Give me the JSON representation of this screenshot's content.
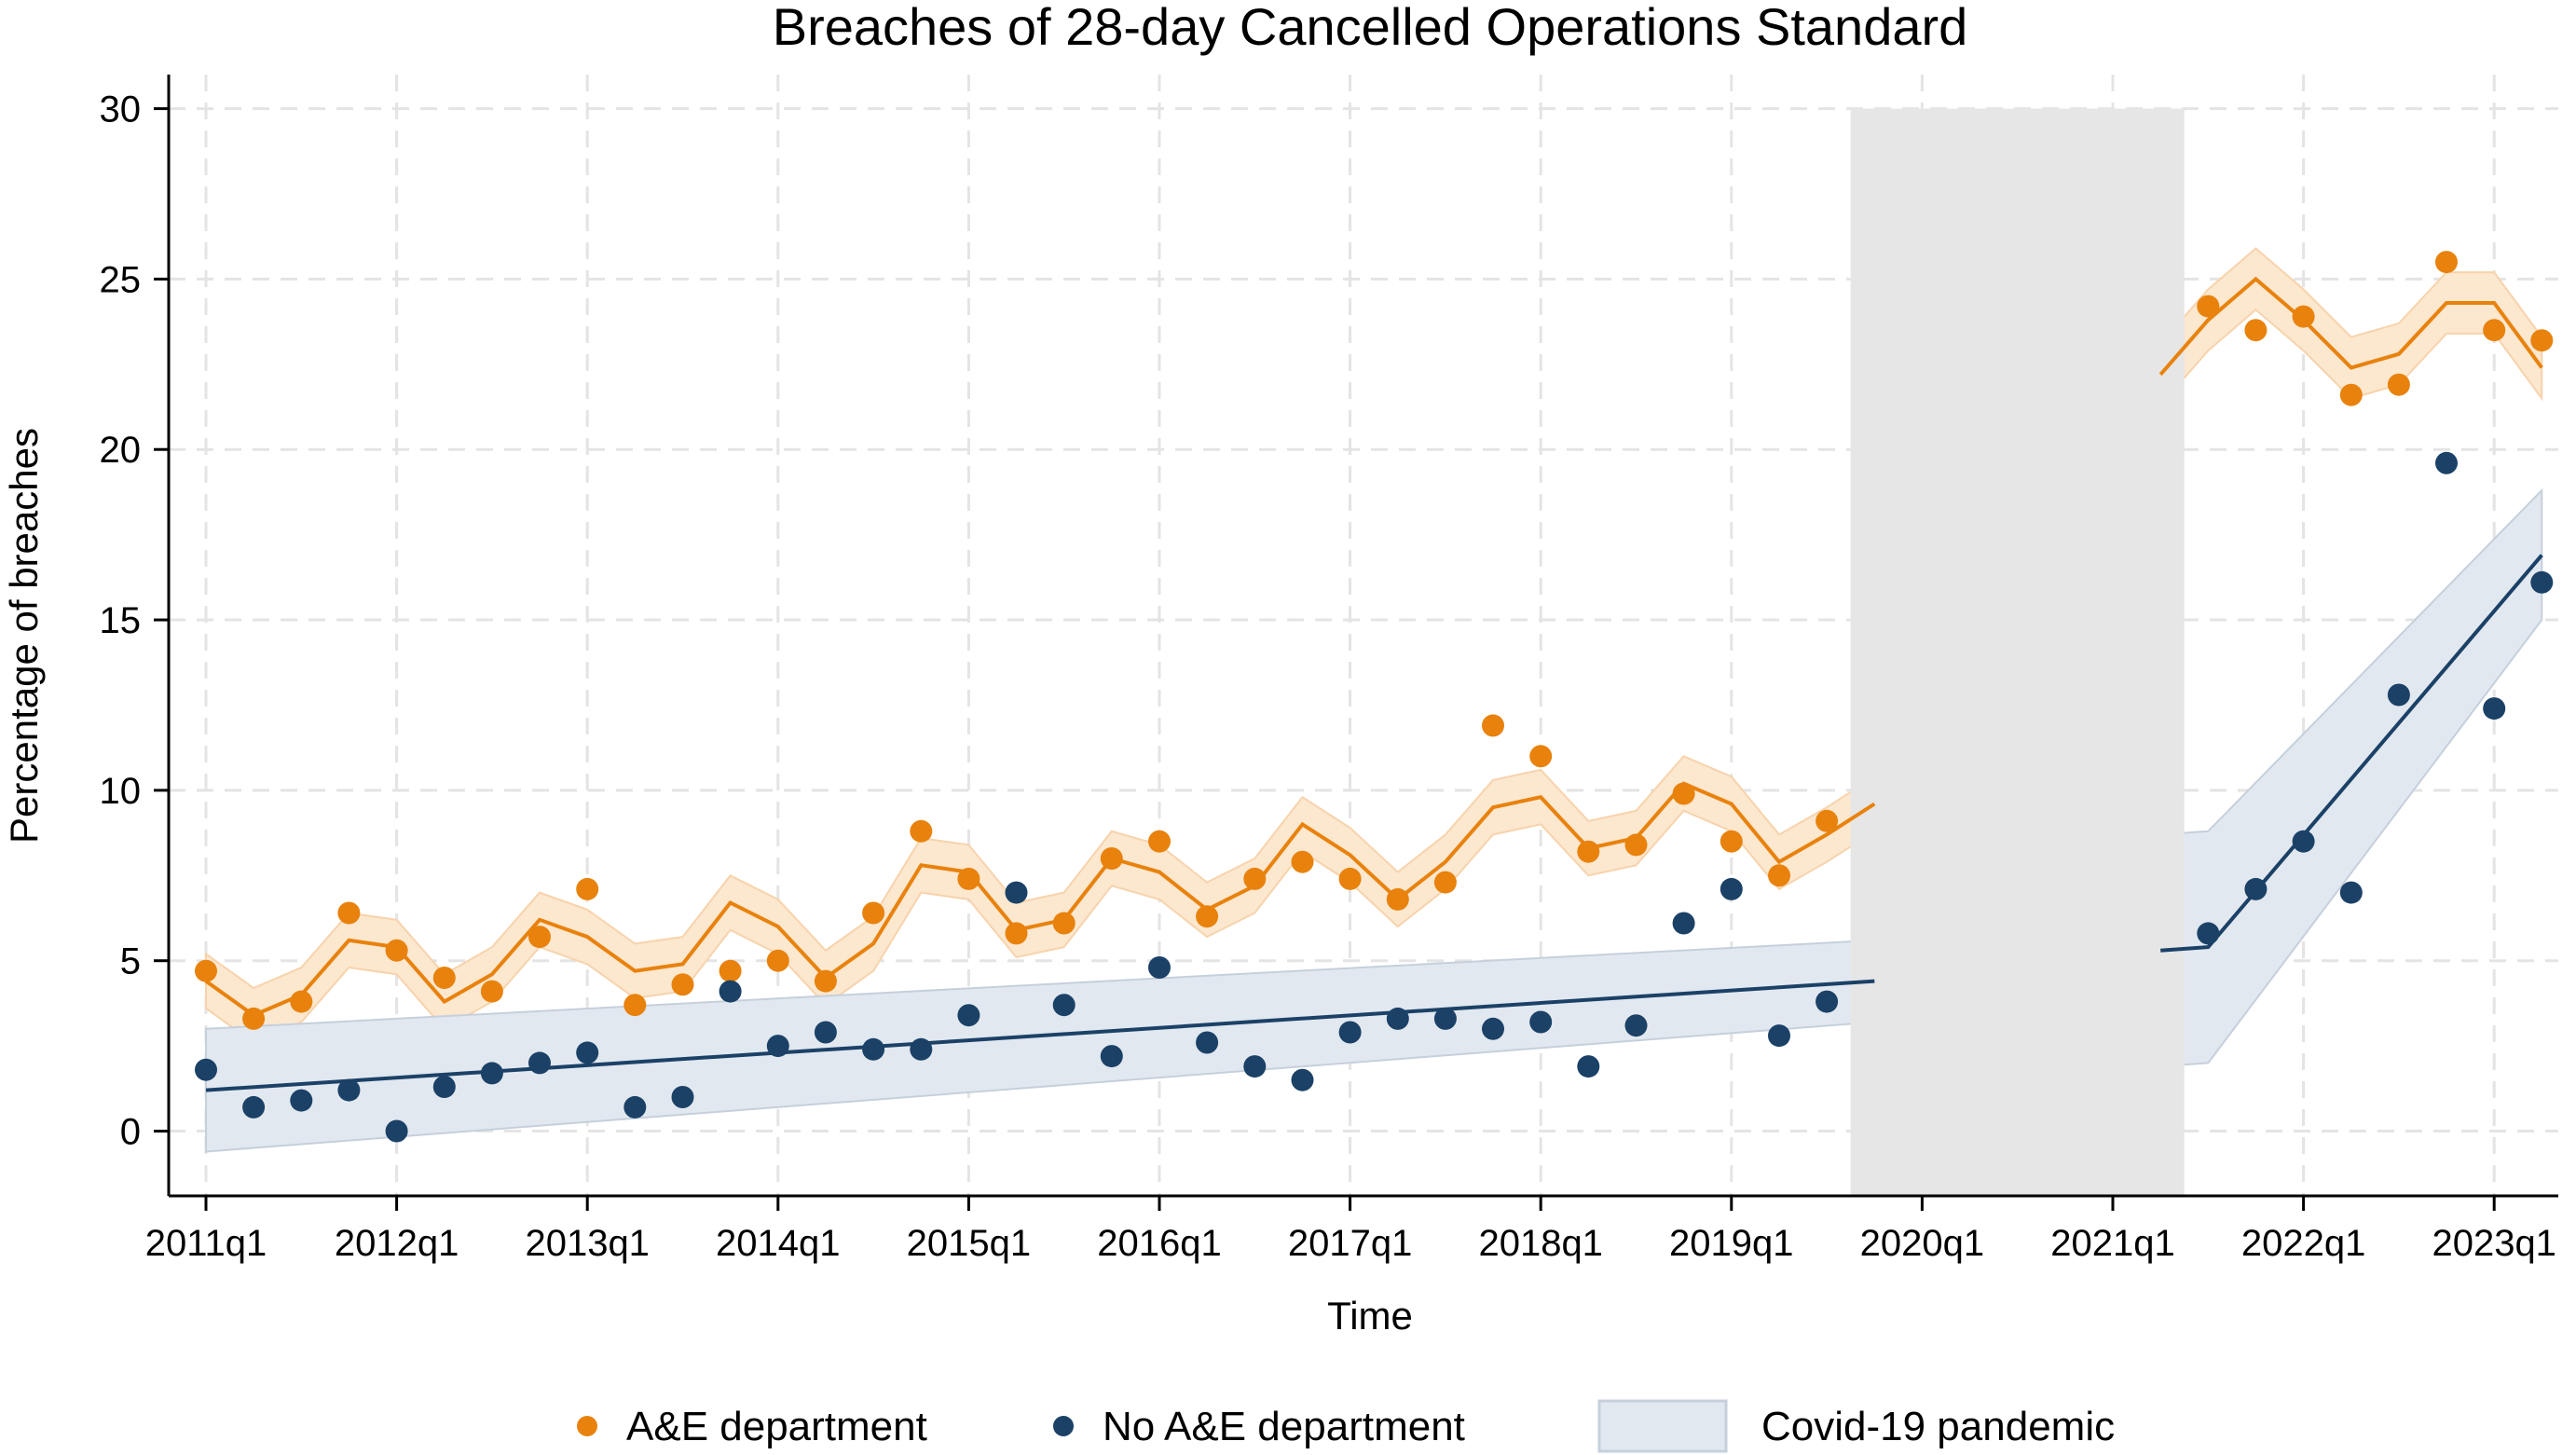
{
  "colors": {
    "ae": "#E8820C",
    "noae": "#1B4167",
    "ae_band": "#FCE7CF",
    "noae_band": "#E2E8EF",
    "covid": "#E6E6E6",
    "grid": "#E4E4E4"
  },
  "chart_data": {
    "type": "scatter",
    "title": "Breaches of 28-day Cancelled Operations Standard",
    "xlabel": "Time",
    "ylabel": "Percentage of breaches",
    "ylim": [
      -1.9,
      31
    ],
    "yticks": [
      "0",
      "5",
      "10",
      "15",
      "20",
      "25",
      "30"
    ],
    "xticks": [
      "2011q1",
      "2012q1",
      "2013q1",
      "2014q1",
      "2015q1",
      "2016q1",
      "2017q1",
      "2018q1",
      "2019q1",
      "2020q1",
      "2021q1",
      "2022q1",
      "2023q1"
    ],
    "grid": true,
    "legend_position": "bottom",
    "covid_period": [
      "2019q3",
      "2021q2"
    ],
    "legend": [
      "A&E department",
      "No A&E department",
      "Covid-19 pandemic"
    ],
    "series": [
      {
        "name": "A&E department",
        "points": [
          [
            "2011q1",
            4.7
          ],
          [
            "2011q2",
            3.3
          ],
          [
            "2011q3",
            3.8
          ],
          [
            "2011q4",
            6.4
          ],
          [
            "2012q1",
            5.3
          ],
          [
            "2012q2",
            4.5
          ],
          [
            "2012q3",
            4.1
          ],
          [
            "2012q4",
            5.7
          ],
          [
            "2013q1",
            7.1
          ],
          [
            "2013q2",
            3.7
          ],
          [
            "2013q3",
            4.3
          ],
          [
            "2013q4",
            4.7
          ],
          [
            "2014q1",
            5.0
          ],
          [
            "2014q2",
            4.4
          ],
          [
            "2014q3",
            6.4
          ],
          [
            "2014q4",
            8.8
          ],
          [
            "2015q1",
            7.4
          ],
          [
            "2015q2",
            5.8
          ],
          [
            "2015q3",
            6.1
          ],
          [
            "2015q4",
            8.0
          ],
          [
            "2016q1",
            8.5
          ],
          [
            "2016q2",
            6.3
          ],
          [
            "2016q3",
            7.4
          ],
          [
            "2016q4",
            7.9
          ],
          [
            "2017q1",
            7.4
          ],
          [
            "2017q2",
            6.8
          ],
          [
            "2017q3",
            7.3
          ],
          [
            "2017q4",
            11.9
          ],
          [
            "2018q1",
            11.0
          ],
          [
            "2018q2",
            8.2
          ],
          [
            "2018q3",
            8.4
          ],
          [
            "2018q4",
            9.9
          ],
          [
            "2019q1",
            8.5
          ],
          [
            "2019q2",
            7.5
          ],
          [
            "2019q3",
            9.1
          ],
          [
            "2021q3",
            24.2
          ],
          [
            "2021q4",
            23.5
          ],
          [
            "2022q1",
            23.9
          ],
          [
            "2022q2",
            21.6
          ],
          [
            "2022q3",
            21.9
          ],
          [
            "2022q4",
            25.5
          ],
          [
            "2023q1",
            23.5
          ],
          [
            "2023q2",
            23.2
          ]
        ],
        "fit": [
          [
            "2011q1",
            4.4
          ],
          [
            "2011q2",
            3.4
          ],
          [
            "2011q3",
            4.0
          ],
          [
            "2011q4",
            5.6
          ],
          [
            "2012q1",
            5.4
          ],
          [
            "2012q2",
            3.8
          ],
          [
            "2012q3",
            4.6
          ],
          [
            "2012q4",
            6.2
          ],
          [
            "2013q1",
            5.7
          ],
          [
            "2013q2",
            4.7
          ],
          [
            "2013q3",
            4.9
          ],
          [
            "2013q4",
            6.7
          ],
          [
            "2014q1",
            6.0
          ],
          [
            "2014q2",
            4.5
          ],
          [
            "2014q3",
            5.5
          ],
          [
            "2014q4",
            7.8
          ],
          [
            "2015q1",
            7.6
          ],
          [
            "2015q2",
            5.9
          ],
          [
            "2015q3",
            6.2
          ],
          [
            "2015q4",
            8.0
          ],
          [
            "2016q1",
            7.6
          ],
          [
            "2016q2",
            6.5
          ],
          [
            "2016q3",
            7.2
          ],
          [
            "2016q4",
            9.0
          ],
          [
            "2017q1",
            8.1
          ],
          [
            "2017q2",
            6.8
          ],
          [
            "2017q3",
            7.9
          ],
          [
            "2017q4",
            9.5
          ],
          [
            "2018q1",
            9.8
          ],
          [
            "2018q2",
            8.3
          ],
          [
            "2018q3",
            8.6
          ],
          [
            "2018q4",
            10.2
          ],
          [
            "2019q1",
            9.6
          ],
          [
            "2019q2",
            7.9
          ],
          [
            "2019q3",
            8.7
          ],
          [
            "2019q4",
            9.6
          ],
          [
            "2021q2",
            22.2
          ],
          [
            "2021q3",
            23.8
          ],
          [
            "2021q4",
            25.0
          ],
          [
            "2022q1",
            23.8
          ],
          [
            "2022q2",
            22.4
          ],
          [
            "2022q3",
            22.8
          ],
          [
            "2022q4",
            24.3
          ],
          [
            "2023q1",
            24.3
          ],
          [
            "2023q2",
            22.4
          ]
        ]
      },
      {
        "name": "No A&E department",
        "points": [
          [
            "2011q1",
            1.8
          ],
          [
            "2011q2",
            0.7
          ],
          [
            "2011q3",
            0.9
          ],
          [
            "2011q4",
            1.2
          ],
          [
            "2012q1",
            0.0
          ],
          [
            "2012q2",
            1.3
          ],
          [
            "2012q3",
            1.7
          ],
          [
            "2012q4",
            2.0
          ],
          [
            "2013q1",
            2.3
          ],
          [
            "2013q2",
            0.7
          ],
          [
            "2013q3",
            1.0
          ],
          [
            "2013q4",
            4.1
          ],
          [
            "2014q1",
            2.5
          ],
          [
            "2014q2",
            2.9
          ],
          [
            "2014q3",
            2.4
          ],
          [
            "2014q4",
            2.4
          ],
          [
            "2015q1",
            3.4
          ],
          [
            "2015q2",
            7.0
          ],
          [
            "2015q3",
            3.7
          ],
          [
            "2015q4",
            2.2
          ],
          [
            "2016q1",
            4.8
          ],
          [
            "2016q2",
            2.6
          ],
          [
            "2016q3",
            1.9
          ],
          [
            "2016q4",
            1.5
          ],
          [
            "2017q1",
            2.9
          ],
          [
            "2017q2",
            3.3
          ],
          [
            "2017q3",
            3.3
          ],
          [
            "2017q4",
            3.0
          ],
          [
            "2018q1",
            3.2
          ],
          [
            "2018q2",
            1.9
          ],
          [
            "2018q3",
            3.1
          ],
          [
            "2018q4",
            6.1
          ],
          [
            "2019q1",
            7.1
          ],
          [
            "2019q2",
            2.8
          ],
          [
            "2019q3",
            3.8
          ],
          [
            "2021q3",
            5.8
          ],
          [
            "2021q4",
            7.1
          ],
          [
            "2022q1",
            8.5
          ],
          [
            "2022q2",
            7.0
          ],
          [
            "2022q3",
            12.8
          ],
          [
            "2022q4",
            19.6
          ],
          [
            "2023q1",
            12.4
          ],
          [
            "2023q2",
            16.1
          ]
        ],
        "fit": [
          [
            "2011q1",
            1.2
          ],
          [
            "2019q4",
            4.4
          ],
          [
            "2021q2",
            5.3
          ],
          [
            "2021q3",
            5.4
          ],
          [
            "2023q2",
            16.9
          ]
        ]
      }
    ]
  }
}
